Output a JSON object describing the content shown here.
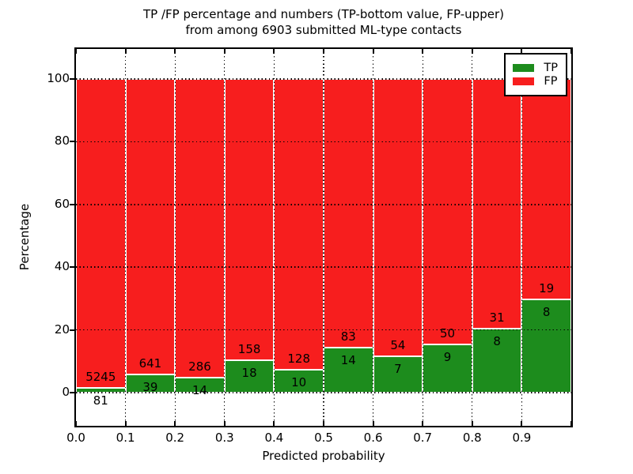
{
  "figure": {
    "title_line1": "TP /FP percentage and numbers (TP-bottom value, FP-upper)",
    "title_line2": "from among 6903 submitted ML-type contacts"
  },
  "chart_data": {
    "type": "bar",
    "subtype": "stacked-percentage",
    "title": "TP /FP percentage and numbers (TP-bottom value, FP-upper)\nfrom among 6903 submitted ML-type contacts",
    "xlabel": "Predicted probability",
    "ylabel": "Percentage",
    "total_contacts": 6903,
    "bin_starts": [
      0.0,
      0.1,
      0.2,
      0.3,
      0.4,
      0.5,
      0.6,
      0.7,
      0.8,
      0.9
    ],
    "bin_width": 0.1,
    "series": [
      {
        "name": "TP",
        "color": "#1d8c1d",
        "counts": [
          81,
          39,
          14,
          18,
          10,
          14,
          7,
          9,
          8,
          8
        ]
      },
      {
        "name": "FP",
        "color": "#f71e1e",
        "counts": [
          5245,
          641,
          286,
          158,
          128,
          83,
          54,
          50,
          31,
          19
        ]
      }
    ],
    "bars_normalized_to_percent": 100,
    "x_tick_labels": [
      "0.0",
      "0.1",
      "0.2",
      "0.3",
      "0.4",
      "0.5",
      "0.6",
      "0.7",
      "0.8",
      "0.9"
    ],
    "y_tick_values": [
      0,
      20,
      40,
      60,
      80,
      100
    ],
    "xlim": [
      0.0,
      1.0
    ],
    "ylim": [
      -10.6,
      109.6
    ],
    "grid": "dotted-black-on-top",
    "bar_edge_color": "#ffffff",
    "legend": {
      "position": "upper-right",
      "entries": [
        "TP",
        "FP"
      ]
    }
  }
}
